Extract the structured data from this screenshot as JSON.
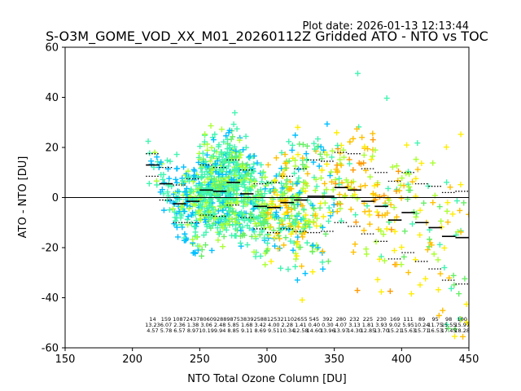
{
  "plot_date_label": "Plot date: 2026-01-13 12:13:44",
  "chart_data": {
    "type": "scatter",
    "title": "S-O3M_GOME_VOD_XX_M01_20260112Z Gridded ATO - NTO vs TOC",
    "xlabel": "NTO Total Ozone Column [DU]",
    "ylabel": "ATO - NTO [DU]",
    "xlim": [
      150,
      450
    ],
    "ylim": [
      -60,
      60
    ],
    "xticks": [
      150,
      200,
      250,
      300,
      350,
      400,
      450
    ],
    "yticks": [
      -60,
      -40,
      -20,
      0,
      20,
      40,
      60
    ],
    "zero_line": 0,
    "marker": "+",
    "colors": {
      "aquamarine": "#40f5b0",
      "deepskyblue": "#00bfff",
      "greenyellow": "#aaff33",
      "lightgreen": "#66ee66",
      "yellow": "#ffee00",
      "gold": "#ffc000",
      "orange": "#ff9900",
      "median": "#000000"
    },
    "bins": [
      {
        "x": 215,
        "mean": 13.0,
        "upper": 17.5,
        "lower": 8.5,
        "count": "14",
        "median_label": "13.23",
        "spread_label": "4.57"
      },
      {
        "x": 225,
        "mean": 5.5,
        "upper": 12.0,
        "lower": -1.0,
        "count": "159",
        "median_label": "6.07",
        "spread_label": "5.78"
      },
      {
        "x": 235,
        "mean": -2.5,
        "upper": 5.0,
        "lower": -10.0,
        "count": "1087",
        "median_label": "2.36",
        "spread_label": "6.57"
      },
      {
        "x": 245,
        "mean": -1.5,
        "upper": 7.5,
        "lower": -10.0,
        "count": "2437",
        "median_label": "1.38",
        "spread_label": "8.97"
      },
      {
        "x": 255,
        "mean": 3.0,
        "upper": 13.0,
        "lower": -7.0,
        "count": "8060",
        "median_label": "3.06",
        "spread_label": "10.19"
      },
      {
        "x": 265,
        "mean": 2.5,
        "upper": 12.0,
        "lower": -7.5,
        "count": "9288",
        "median_label": "2.48",
        "spread_label": "9.94"
      },
      {
        "x": 275,
        "mean": 6.0,
        "upper": 15.0,
        "lower": -3.0,
        "count": "9875",
        "median_label": "5.85",
        "spread_label": "8.85"
      },
      {
        "x": 285,
        "mean": 1.5,
        "upper": 11.0,
        "lower": -8.0,
        "count": "3839",
        "median_label": "1.68",
        "spread_label": "9.11"
      },
      {
        "x": 295,
        "mean": -3.5,
        "upper": 5.5,
        "lower": -12.5,
        "count": "2588",
        "median_label": "3.42",
        "spread_label": "8.69"
      },
      {
        "x": 305,
        "mean": -4.0,
        "upper": 6.0,
        "lower": -14.0,
        "count": "1253",
        "median_label": "4.00",
        "spread_label": "9.51"
      },
      {
        "x": 315,
        "mean": -2.0,
        "upper": 8.5,
        "lower": -12.5,
        "count": "2110",
        "median_label": "2.28",
        "spread_label": "10.34"
      },
      {
        "x": 325,
        "mean": -1.0,
        "upper": 11.5,
        "lower": -13.5,
        "count": "2655",
        "median_label": "1.41",
        "spread_label": "12.58"
      },
      {
        "x": 335,
        "mean": 0.5,
        "upper": 15.0,
        "lower": -14.0,
        "count": "545",
        "median_label": "0.40",
        "spread_label": "14.60"
      },
      {
        "x": 345,
        "mean": 0.5,
        "upper": 14.5,
        "lower": -13.5,
        "count": "392",
        "median_label": "0.30",
        "spread_label": "13.96"
      },
      {
        "x": 355,
        "mean": 4.0,
        "upper": 18.0,
        "lower": -10.0,
        "count": "280",
        "median_label": "4.07",
        "spread_label": "13.97"
      },
      {
        "x": 365,
        "mean": 3.0,
        "upper": 17.5,
        "lower": -11.5,
        "count": "232",
        "median_label": "3.13",
        "spread_label": "14.30"
      },
      {
        "x": 375,
        "mean": -1.5,
        "upper": 11.5,
        "lower": -14.5,
        "count": "225",
        "median_label": "1.81",
        "spread_label": "12.85"
      },
      {
        "x": 385,
        "mean": -3.5,
        "upper": 10.0,
        "lower": -17.5,
        "count": "230",
        "median_label": "3.93",
        "spread_label": "13.70"
      },
      {
        "x": 395,
        "mean": -9.0,
        "upper": 6.5,
        "lower": -24.5,
        "count": "169",
        "median_label": "9.02",
        "spread_label": "15.21"
      },
      {
        "x": 405,
        "mean": -6.0,
        "upper": 10.0,
        "lower": -22.0,
        "count": "111",
        "median_label": "5.95",
        "spread_label": "15.63"
      },
      {
        "x": 415,
        "mean": -10.0,
        "upper": 5.5,
        "lower": -25.5,
        "count": "89",
        "median_label": "10.24",
        "spread_label": "15.71"
      },
      {
        "x": 425,
        "mean": -12.0,
        "upper": 4.5,
        "lower": -28.5,
        "count": "95",
        "median_label": "11.75",
        "spread_label": "16.53"
      },
      {
        "x": 435,
        "mean": -15.5,
        "upper": 2.0,
        "lower": -33.0,
        "count": "98",
        "median_label": "15.55",
        "spread_label": "17.45"
      },
      {
        "x": 445,
        "mean": -16.0,
        "upper": 2.5,
        "lower": -34.5,
        "count": "100",
        "median_label": "15.97",
        "spread_label": "18.28"
      }
    ]
  }
}
